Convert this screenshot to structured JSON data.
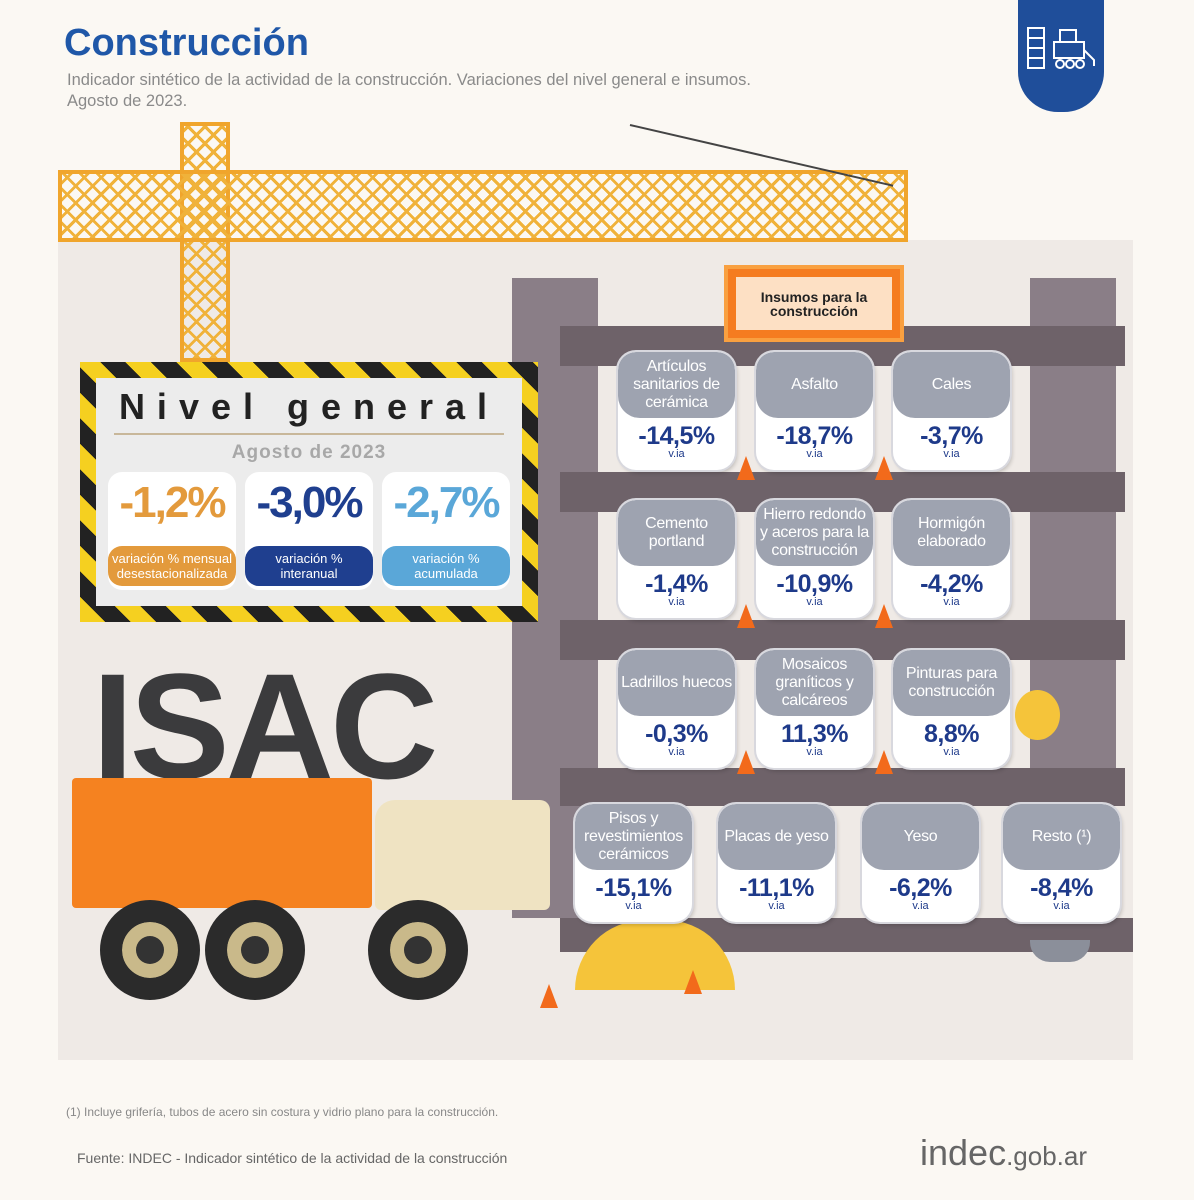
{
  "header": {
    "title": "Construcción",
    "subtitle_line1": "Indicador sintético de la actividad de la construcción. Variaciones del nivel general e insumos.",
    "subtitle_line2": "Agosto de 2023."
  },
  "logo_icon": "construction-building-bulldozer-icon",
  "nivel_general": {
    "title": "Nivel general",
    "date": "Agosto de 2023",
    "items": [
      {
        "value": "-1,2%",
        "label": "variación % mensual desestacionalizada",
        "color": "#e39a3c"
      },
      {
        "value": "-3,0%",
        "label": "variación % interanual",
        "color": "#1f3f8f"
      },
      {
        "value": "-2,7%",
        "label": "variación % acumulada",
        "color": "#5aa7d8"
      }
    ]
  },
  "isac_label": "ISAC",
  "insumos_title": "Insumos para la construcción",
  "insumos": [
    {
      "name": "Artículos sanitarios de cerámica",
      "value": "-14,5%",
      "unit": "v.ia"
    },
    {
      "name": "Asfalto",
      "value": "-18,7%",
      "unit": "v.ia"
    },
    {
      "name": "Cales",
      "value": "-3,7%",
      "unit": "v.ia"
    },
    {
      "name": "Cemento portland",
      "value": "-1,4%",
      "unit": "v.ia"
    },
    {
      "name": "Hierro redondo y aceros para la construcción",
      "value": "-10,9%",
      "unit": "v.ia"
    },
    {
      "name": "Hormigón elaborado",
      "value": "-4,2%",
      "unit": "v.ia"
    },
    {
      "name": "Ladrillos huecos",
      "value": "-0,3%",
      "unit": "v.ia"
    },
    {
      "name": "Mosaicos graníticos y calcáreos",
      "value": "11,3%",
      "unit": "v.ia"
    },
    {
      "name": "Pinturas para construcción",
      "value": "8,8%",
      "unit": "v.ia"
    },
    {
      "name": "Pisos y revestimientos cerámicos",
      "value": "-15,1%",
      "unit": "v.ia"
    },
    {
      "name": "Placas de yeso",
      "value": "-11,1%",
      "unit": "v.ia"
    },
    {
      "name": "Yeso",
      "value": "-6,2%",
      "unit": "v.ia"
    },
    {
      "name": "Resto (¹)",
      "value": "-8,4%",
      "unit": "v.ia"
    }
  ],
  "footnote": "(1) Incluye grifería, tubos de acero sin costura y vidrio plano para la construcción.",
  "source": "Fuente: INDEC - Indicador sintético de la actividad de la construcción",
  "brand": {
    "main": "indec",
    "suffix": ".gob.ar"
  }
}
